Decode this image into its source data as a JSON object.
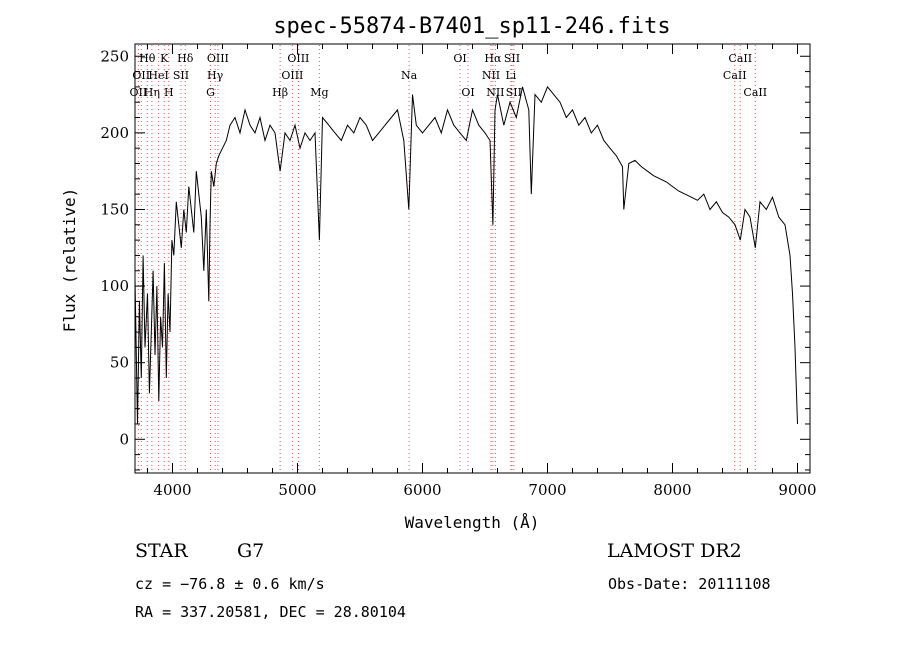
{
  "chart_data": {
    "type": "line",
    "title": "spec-55874-B7401_sp11-246.fits",
    "xlabel": "Wavelength (Å)",
    "ylabel": "Flux (relative)",
    "xlim": [
      3700,
      9100
    ],
    "ylim": [
      -22,
      258
    ],
    "xticks": [
      4000,
      5000,
      6000,
      7000,
      8000,
      9000
    ],
    "xtick_labels": [
      "4000",
      "5000",
      "6000",
      "7000",
      "8000",
      "9000"
    ],
    "yticks": [
      0,
      50,
      100,
      150,
      200,
      250
    ],
    "ytick_labels": [
      "0",
      "50",
      "100",
      "150",
      "200",
      "250"
    ],
    "grid": false,
    "series": [
      {
        "color": "#000000",
        "x": [
          3700,
          3720,
          3735,
          3750,
          3765,
          3780,
          3800,
          3815,
          3830,
          3845,
          3860,
          3875,
          3890,
          3905,
          3920,
          3935,
          3950,
          3965,
          3980,
          3995,
          4010,
          4030,
          4050,
          4070,
          4090,
          4110,
          4130,
          4150,
          4170,
          4190,
          4210,
          4230,
          4250,
          4270,
          4290,
          4300,
          4310,
          4330,
          4350,
          4370,
          4400,
          4430,
          4460,
          4500,
          4540,
          4580,
          4620,
          4660,
          4700,
          4740,
          4780,
          4820,
          4861,
          4900,
          4940,
          4980,
          5020,
          5060,
          5100,
          5140,
          5175,
          5200,
          5250,
          5300,
          5350,
          5400,
          5450,
          5500,
          5550,
          5600,
          5650,
          5700,
          5750,
          5800,
          5850,
          5890,
          5920,
          5950,
          6000,
          6050,
          6100,
          6150,
          6200,
          6250,
          6300,
          6350,
          6400,
          6450,
          6500,
          6540,
          6563,
          6580,
          6600,
          6650,
          6700,
          6750,
          6800,
          6850,
          6870,
          6900,
          6950,
          7000,
          7050,
          7100,
          7150,
          7200,
          7250,
          7300,
          7350,
          7400,
          7450,
          7500,
          7550,
          7600,
          7610,
          7650,
          7700,
          7750,
          7800,
          7850,
          7900,
          7950,
          8000,
          8050,
          8100,
          8150,
          8200,
          8250,
          8300,
          8350,
          8400,
          8450,
          8500,
          8542,
          8580,
          8620,
          8662,
          8700,
          8750,
          8800,
          8850,
          8900,
          8940,
          8960,
          8980,
          9000
        ],
        "y": [
          105,
          10,
          90,
          40,
          120,
          60,
          95,
          30,
          70,
          110,
          55,
          100,
          25,
          80,
          60,
          115,
          40,
          95,
          70,
          130,
          120,
          155,
          140,
          125,
          150,
          135,
          165,
          150,
          135,
          175,
          160,
          145,
          110,
          150,
          90,
          140,
          175,
          165,
          180,
          185,
          190,
          195,
          205,
          210,
          200,
          215,
          205,
          200,
          210,
          195,
          205,
          200,
          175,
          200,
          195,
          205,
          190,
          200,
          195,
          200,
          130,
          210,
          205,
          200,
          195,
          205,
          200,
          210,
          205,
          195,
          200,
          205,
          210,
          215,
          195,
          150,
          225,
          205,
          200,
          205,
          210,
          200,
          215,
          205,
          200,
          195,
          215,
          205,
          200,
          195,
          140,
          215,
          225,
          205,
          220,
          210,
          230,
          215,
          160,
          225,
          220,
          230,
          225,
          220,
          210,
          215,
          205,
          210,
          200,
          205,
          195,
          190,
          185,
          178,
          150,
          180,
          182,
          178,
          175,
          172,
          170,
          168,
          165,
          162,
          160,
          158,
          156,
          160,
          150,
          155,
          148,
          145,
          140,
          130,
          150,
          145,
          125,
          155,
          150,
          158,
          145,
          140,
          120,
          95,
          60,
          10
        ]
      }
    ],
    "line_markers": [
      {
        "wave": 3727,
        "label": "OII",
        "row": 3
      },
      {
        "wave": 3750,
        "label": "OII",
        "row": 2
      },
      {
        "wave": 3798,
        "label": "Hθ",
        "row": 1
      },
      {
        "wave": 3835,
        "label": "Hη",
        "row": 3
      },
      {
        "wave": 3889,
        "label": "HeI",
        "row": 2
      },
      {
        "wave": 3934,
        "label": "K",
        "row": 1
      },
      {
        "wave": 3970,
        "label": "H",
        "row": 3
      },
      {
        "wave": 4068,
        "label": "SII",
        "row": 2
      },
      {
        "wave": 4102,
        "label": "Hδ",
        "row": 1
      },
      {
        "wave": 4304,
        "label": "G",
        "row": 3
      },
      {
        "wave": 4341,
        "label": "Hγ",
        "row": 2
      },
      {
        "wave": 4363,
        "label": "OIII",
        "row": 1
      },
      {
        "wave": 4861,
        "label": "Hβ",
        "row": 3
      },
      {
        "wave": 4959,
        "label": "OIII",
        "row": 2
      },
      {
        "wave": 5007,
        "label": "OIII",
        "row": 1
      },
      {
        "wave": 5175,
        "label": "Mg",
        "row": 3
      },
      {
        "wave": 5893,
        "label": "Na",
        "row": 2
      },
      {
        "wave": 6300,
        "label": "OI",
        "row": 1
      },
      {
        "wave": 6364,
        "label": "OI",
        "row": 3
      },
      {
        "wave": 6548,
        "label": "NII",
        "row": 2
      },
      {
        "wave": 6563,
        "label": "Hα",
        "row": 1
      },
      {
        "wave": 6583,
        "label": "NII",
        "row": 3
      },
      {
        "wave": 6716,
        "label": "SII",
        "row": 1
      },
      {
        "wave": 6707,
        "label": "Li",
        "row": 2
      },
      {
        "wave": 6731,
        "label": "SII",
        "row": 3
      },
      {
        "wave": 8498,
        "label": "CaII",
        "row": 2
      },
      {
        "wave": 8542,
        "label": "CaII",
        "row": 1
      },
      {
        "wave": 8662,
        "label": "CaII",
        "row": 3
      }
    ],
    "marker_color": "#e05555"
  },
  "info": {
    "class_label": "STAR",
    "subclass": "G7",
    "survey": "LAMOST DR2",
    "cz": "cz = −76.8 ± 0.6 km/s",
    "obs_date": "Obs-Date: 20111108",
    "coords": "RA = 337.20581, DEC =  28.80104"
  }
}
